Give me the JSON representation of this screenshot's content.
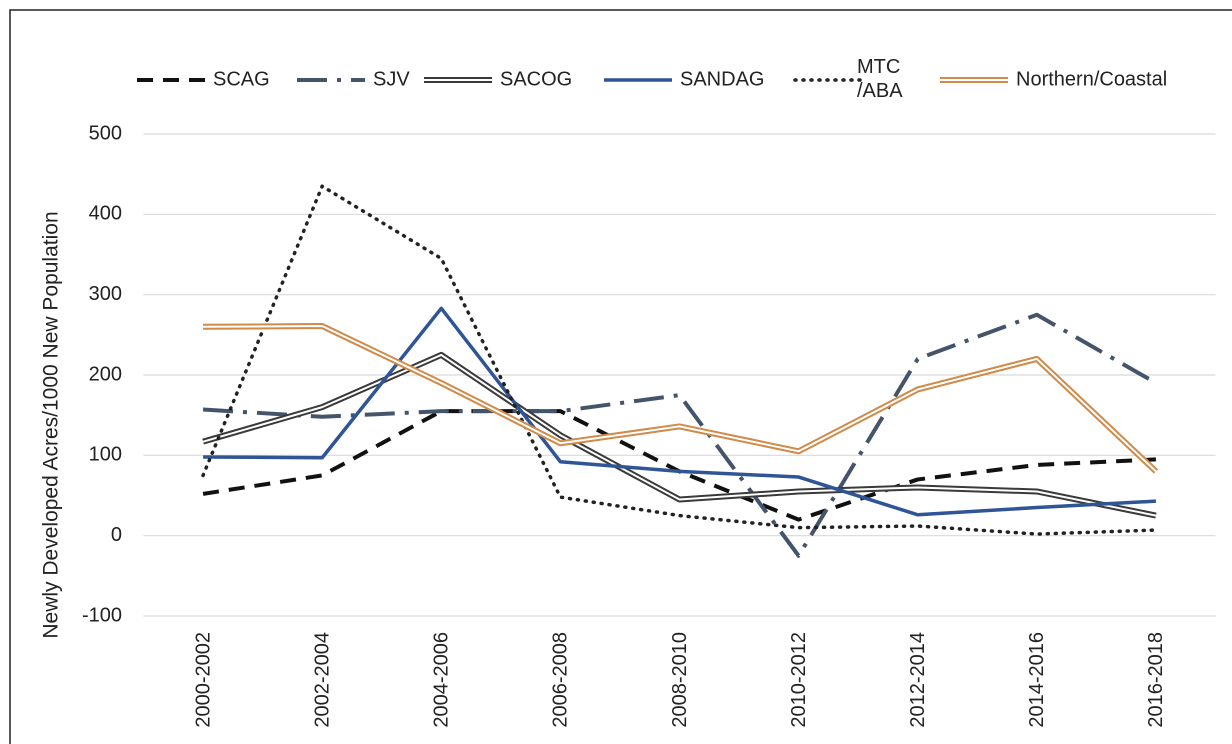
{
  "chart_data": {
    "type": "line",
    "y_label": "Newly Developed Acres/1000 New Population",
    "categories": [
      "2000-2002",
      "2002-2004",
      "2004-2006",
      "2006-2008",
      "2008-2010",
      "2010-2012",
      "2012-2014",
      "2014-2016",
      "2016-2018"
    ],
    "series": [
      {
        "name": "SCAG",
        "color": "#111111",
        "dash": "dash",
        "values": [
          52,
          75,
          155,
          155,
          80,
          20,
          70,
          88,
          95
        ]
      },
      {
        "name": "SJV",
        "color": "#44546a",
        "dash": "dashdot",
        "values": [
          157,
          148,
          155,
          155,
          175,
          -25,
          220,
          275,
          190
        ]
      },
      {
        "name": "SACOG",
        "color": "#3a3a3a",
        "dash": "double",
        "values": [
          117,
          160,
          225,
          125,
          45,
          55,
          60,
          55,
          25
        ]
      },
      {
        "name": "SANDAG",
        "color": "#2f5597",
        "dash": "solid",
        "values": [
          98,
          97,
          283,
          92,
          80,
          73,
          26,
          35,
          43
        ]
      },
      {
        "name": "MTC /ABA",
        "color": "#222222",
        "dash": "dot",
        "values": [
          75,
          435,
          345,
          48,
          25,
          10,
          12,
          2,
          7
        ]
      },
      {
        "name": "Northern/Coastal",
        "color": "#d08a4a",
        "dash": "double",
        "values": [
          260,
          261,
          190,
          115,
          136,
          105,
          182,
          220,
          80
        ]
      }
    ],
    "ylim": [
      -100,
      500
    ],
    "yticks": [
      -100,
      0,
      100,
      200,
      300,
      400,
      500
    ],
    "grid": true,
    "legend": "top"
  }
}
